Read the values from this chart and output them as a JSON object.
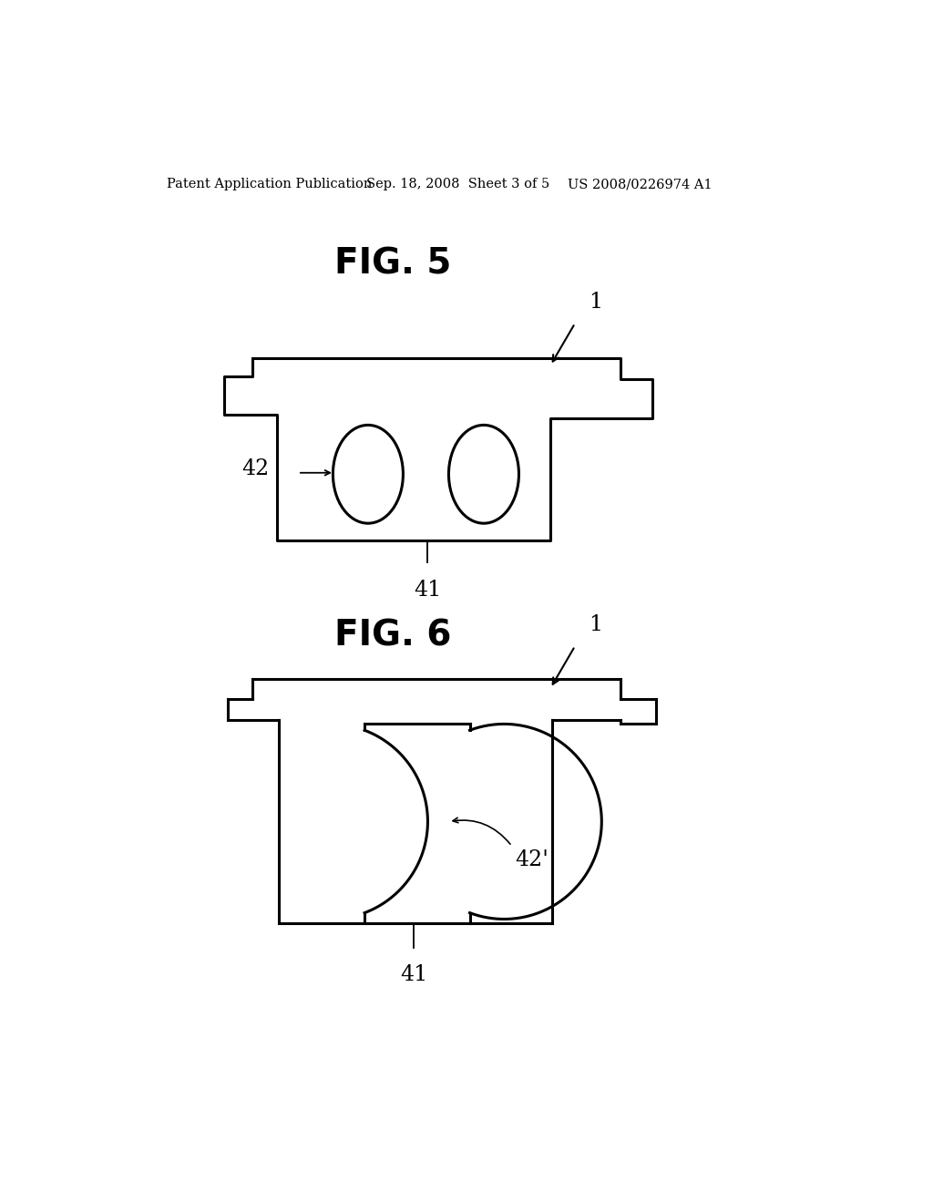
{
  "bg_color": "#ffffff",
  "line_color": "#000000",
  "header_left": "Patent Application Publication",
  "header_center": "Sep. 18, 2008  Sheet 3 of 5",
  "header_right": "US 2008/0226974 A1",
  "fig5_title": "FIG. 5",
  "fig6_title": "FIG. 6",
  "label_1_fig5": "1",
  "label_42_fig5": "42",
  "label_41_fig5": "41",
  "label_1_fig6": "1",
  "label_42p_fig6": "42'",
  "label_41_fig6": "41"
}
